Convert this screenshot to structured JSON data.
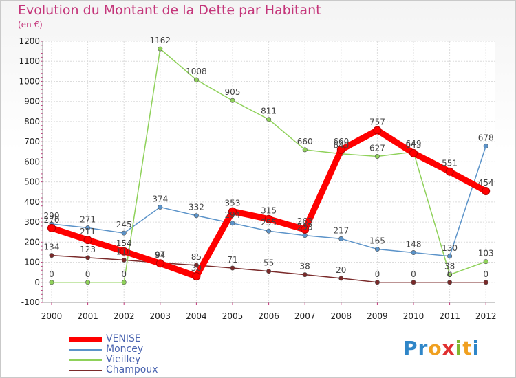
{
  "title": "Evolution du Montant de la Dette par Habitant",
  "subtitle": "(en €)",
  "logo": {
    "text": "Proxiti",
    "letters": [
      {
        "ch": "P",
        "color": "#2f86c8"
      },
      {
        "ch": "r",
        "color": "#2f86c8"
      },
      {
        "ch": "o",
        "color": "#f0a020"
      },
      {
        "ch": "x",
        "color": "#e03030"
      },
      {
        "ch": "i",
        "color": "#80b830"
      },
      {
        "ch": "t",
        "color": "#f0a020"
      },
      {
        "ch": "i",
        "color": "#2f86c8"
      }
    ]
  },
  "chart_data": {
    "type": "line",
    "title": "Evolution du Montant de la Dette par Habitant",
    "ylabel": "(en €)",
    "x": [
      "2000",
      "2001",
      "2002",
      "2003",
      "2004",
      "2005",
      "2006",
      "2007",
      "2008",
      "2009",
      "2010",
      "2011",
      "2012"
    ],
    "ylim": [
      -100,
      1200
    ],
    "yticks": [
      -100,
      0,
      100,
      200,
      300,
      400,
      500,
      600,
      700,
      800,
      900,
      1000,
      1100,
      1200
    ],
    "grid": true,
    "legend_position": "bottom-left",
    "series": [
      {
        "name": "VENISE",
        "color": "#ff0000",
        "values": [
          270,
          211,
          154,
          94,
          30,
          353,
          315,
          263,
          660,
          757,
          643,
          551,
          454
        ]
      },
      {
        "name": "Moncey",
        "color": "#5b93c9",
        "values": [
          290,
          271,
          245,
          374,
          332,
          294,
          255,
          233,
          217,
          165,
          148,
          130,
          678
        ]
      },
      {
        "name": "Vieilley",
        "color": "#8fd15a",
        "values": [
          0,
          0,
          0,
          1162,
          1008,
          905,
          811,
          660,
          640,
          627,
          649,
          38,
          103
        ]
      },
      {
        "name": "Champoux",
        "color": "#7a2a2a",
        "values": [
          134,
          123,
          111,
          97,
          85,
          71,
          55,
          38,
          20,
          0,
          0,
          0,
          0
        ]
      }
    ]
  }
}
